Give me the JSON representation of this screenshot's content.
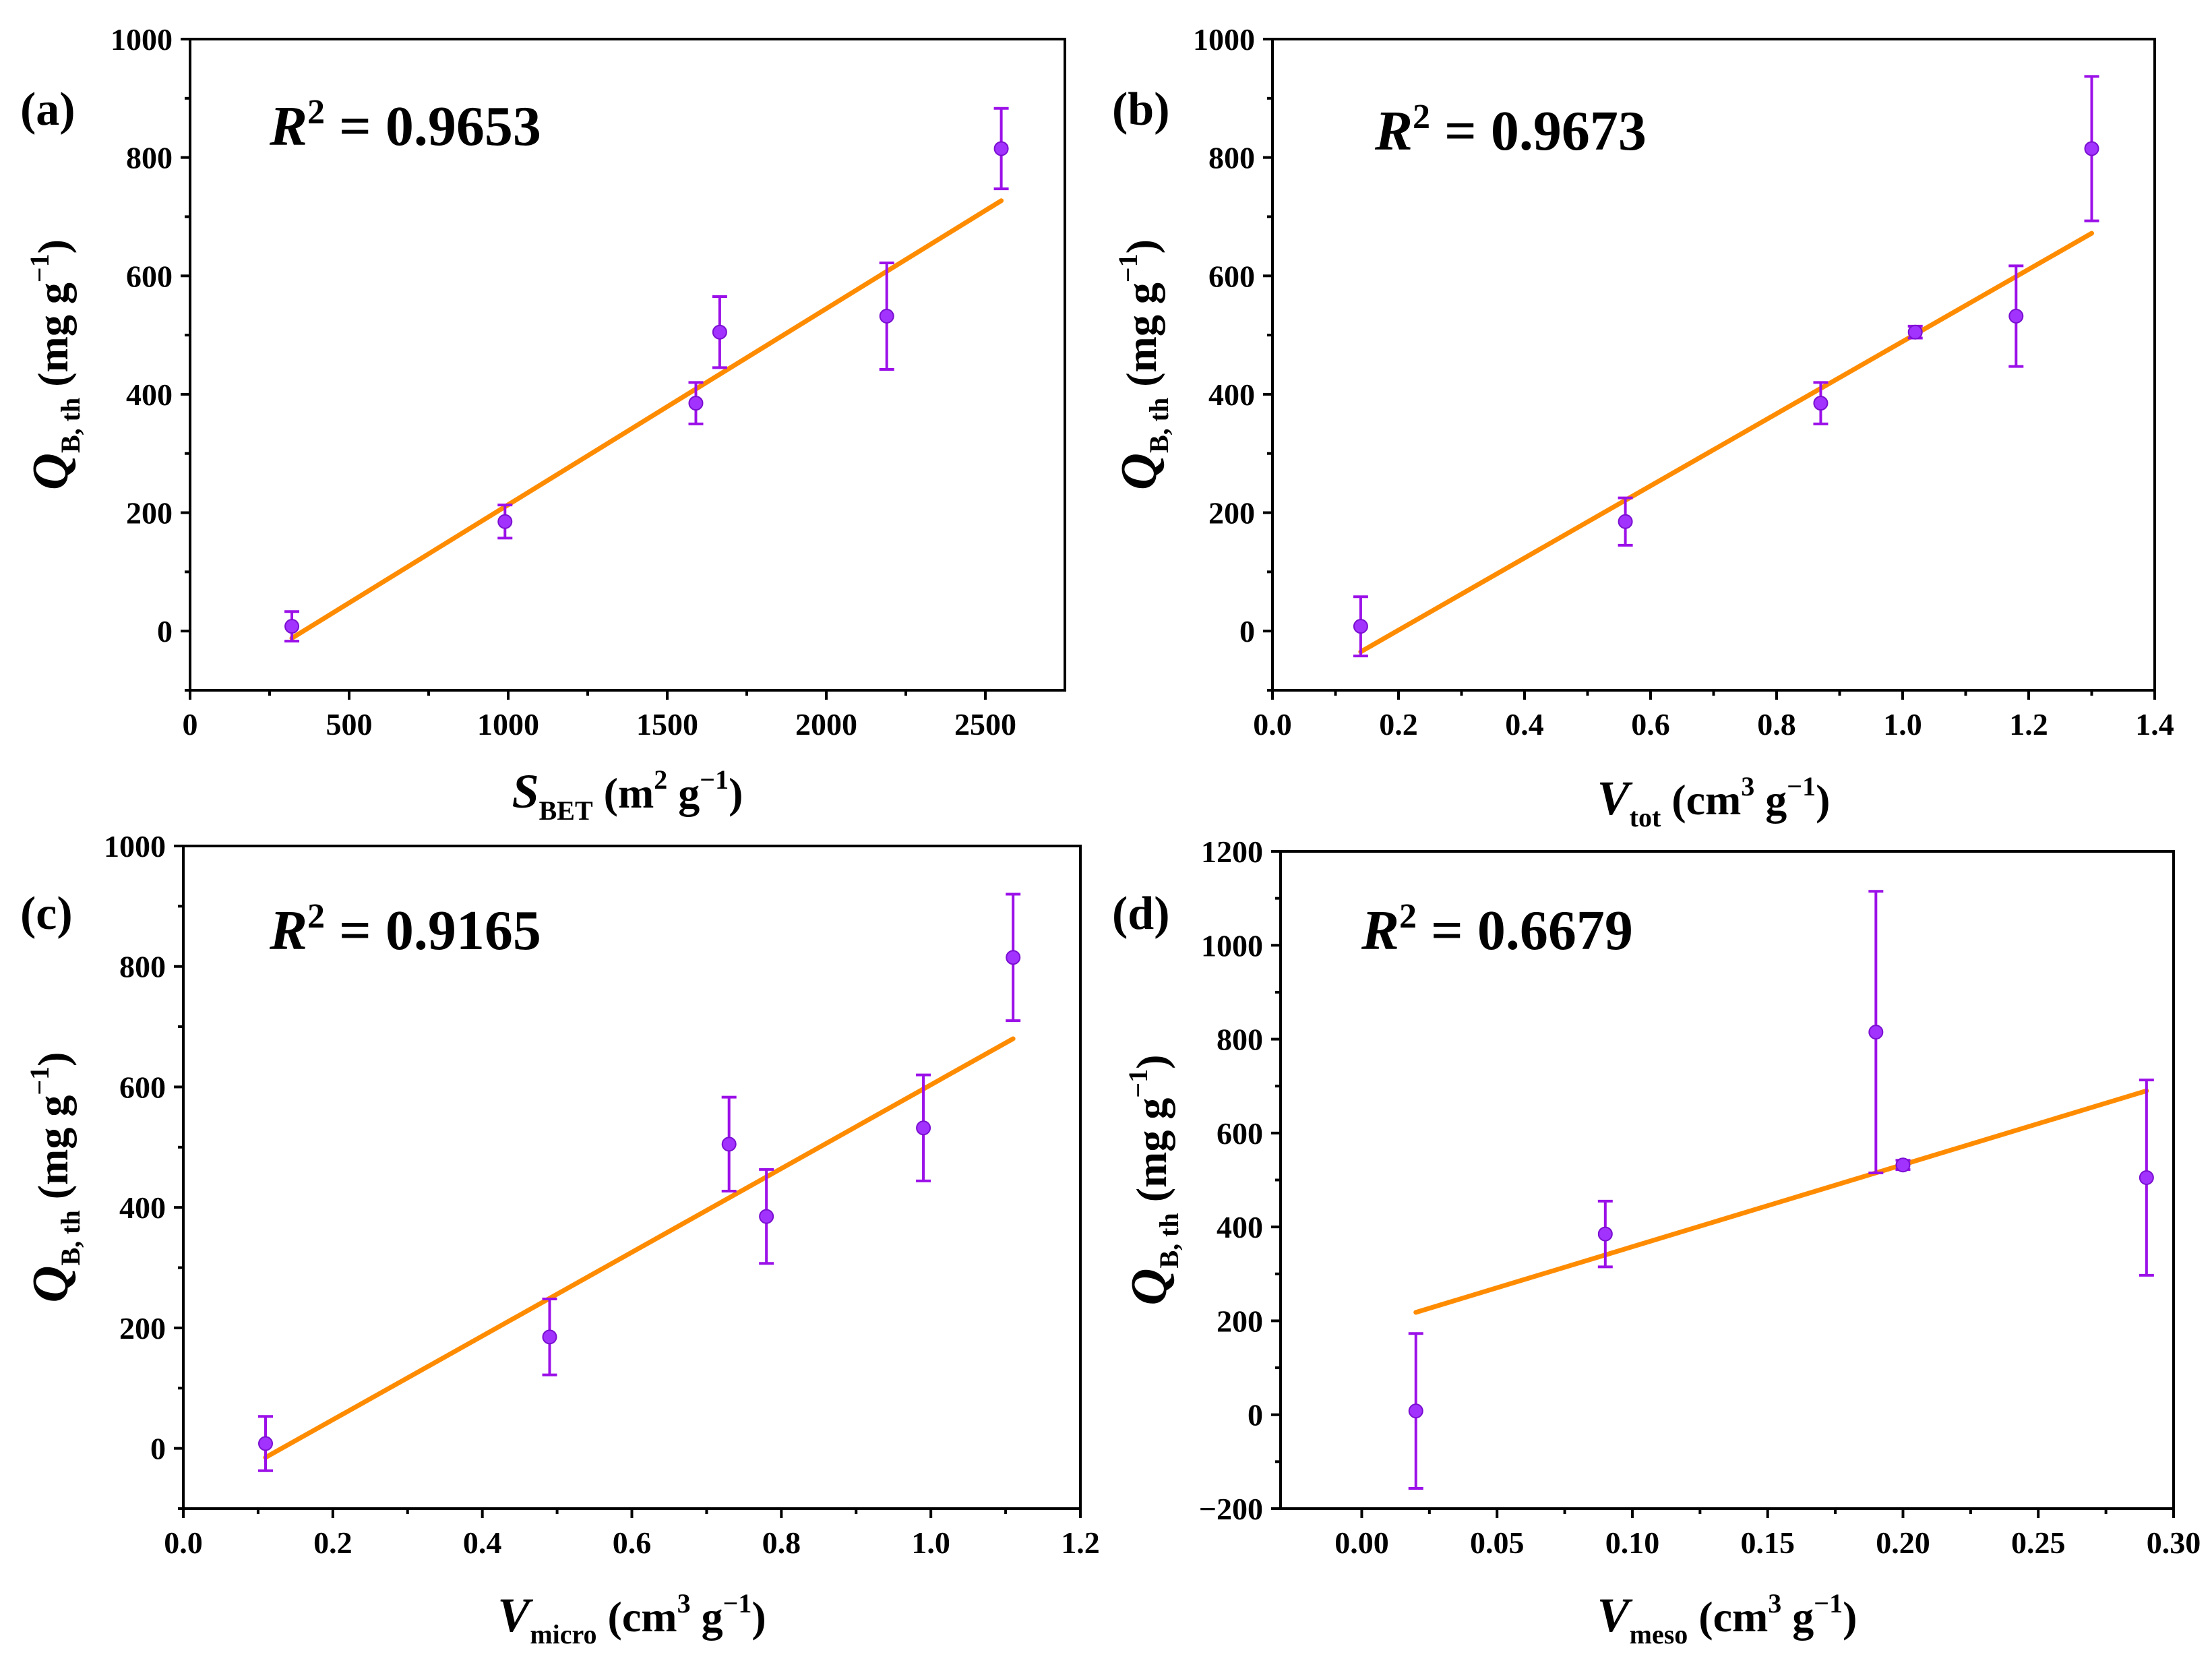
{
  "chart_data": [
    {
      "type": "scatter",
      "panel_label": "(a)",
      "r2_label": "R",
      "r2_sup": "2",
      "r2_value": " = 0.9653",
      "xlabel": {
        "var": "S",
        "sub": "BET",
        "unit_open": " (m",
        "unit_sup": "2",
        "unit_mid": " g",
        "unit_sup2": "−1",
        "unit_close": ")"
      },
      "ylabel": {
        "var": "Q",
        "sub": "B, th",
        "unit_open": " (mg g",
        "unit_sup": "−1",
        "unit_close": ")"
      },
      "xlim": [
        0,
        2750
      ],
      "ylim": [
        -100,
        1000
      ],
      "xticks": [
        0,
        500,
        1000,
        1500,
        2000,
        2500
      ],
      "xtick_labels": [
        "0",
        "500",
        "1000",
        "1500",
        "2000",
        "2500"
      ],
      "yticks": [
        0,
        200,
        400,
        600,
        800,
        1000
      ],
      "ytick_labels": [
        "0",
        "200",
        "400",
        "600",
        "800",
        "1000"
      ],
      "points": [
        {
          "x": 320,
          "y": 8,
          "err_low": 25,
          "err_high": 25
        },
        {
          "x": 990,
          "y": 185,
          "err_low": 28,
          "err_high": 28
        },
        {
          "x": 1590,
          "y": 385,
          "err_low": 35,
          "err_high": 35
        },
        {
          "x": 1665,
          "y": 505,
          "err_low": 60,
          "err_high": 60
        },
        {
          "x": 2190,
          "y": 532,
          "err_low": 90,
          "err_high": 90
        },
        {
          "x": 2550,
          "y": 815,
          "err_low": 68,
          "err_high": 68
        }
      ],
      "fit": {
        "x": [
          320,
          2550
        ],
        "y": [
          -12,
          727
        ]
      }
    },
    {
      "type": "scatter",
      "panel_label": "(b)",
      "r2_label": "R",
      "r2_sup": "2",
      "r2_value": " = 0.9673",
      "xlabel": {
        "var": "V",
        "sub": "tot",
        "unit_open": " (cm",
        "unit_sup": "3",
        "unit_mid": " g",
        "unit_sup2": "−1",
        "unit_close": ")"
      },
      "ylabel": {
        "var": "Q",
        "sub": "B, th",
        "unit_open": " (mg g",
        "unit_sup": "−1",
        "unit_close": ")"
      },
      "xlim": [
        0,
        1.4
      ],
      "ylim": [
        -100,
        1000
      ],
      "xticks": [
        0,
        0.2,
        0.4,
        0.6,
        0.8,
        1.0,
        1.2,
        1.4
      ],
      "xtick_labels": [
        "0.0",
        "0.2",
        "0.4",
        "0.6",
        "0.8",
        "1.0",
        "1.2",
        "1.4"
      ],
      "yticks": [
        0,
        200,
        400,
        600,
        800,
        1000
      ],
      "ytick_labels": [
        "0",
        "200",
        "400",
        "600",
        "800",
        "1000"
      ],
      "points": [
        {
          "x": 0.14,
          "y": 8,
          "err_low": 50,
          "err_high": 50
        },
        {
          "x": 0.56,
          "y": 185,
          "err_low": 40,
          "err_high": 40
        },
        {
          "x": 0.87,
          "y": 385,
          "err_low": 35,
          "err_high": 35
        },
        {
          "x": 1.02,
          "y": 505,
          "err_low": 10,
          "err_high": 10
        },
        {
          "x": 1.18,
          "y": 532,
          "err_low": 85,
          "err_high": 85
        },
        {
          "x": 1.3,
          "y": 815,
          "err_low": 122,
          "err_high": 122
        }
      ],
      "fit": {
        "x": [
          0.14,
          1.3
        ],
        "y": [
          -35,
          672
        ]
      }
    },
    {
      "type": "scatter",
      "panel_label": "(c)",
      "r2_label": "R",
      "r2_sup": "2",
      "r2_value": " = 0.9165",
      "xlabel": {
        "var": "V",
        "sub": "micro",
        "unit_open": " (cm",
        "unit_sup": "3",
        "unit_mid": " g",
        "unit_sup2": "−1",
        "unit_close": ")"
      },
      "ylabel": {
        "var": "Q",
        "sub": "B, th",
        "unit_open": " (mg g",
        "unit_sup": "−1",
        "unit_close": ")"
      },
      "xlim": [
        0,
        1.2
      ],
      "ylim": [
        -100,
        1000
      ],
      "xticks": [
        0,
        0.2,
        0.4,
        0.6,
        0.8,
        1.0,
        1.2
      ],
      "xtick_labels": [
        "0.0",
        "0.2",
        "0.4",
        "0.6",
        "0.8",
        "1.0",
        "1.2"
      ],
      "yticks": [
        0,
        200,
        400,
        600,
        800,
        1000
      ],
      "ytick_labels": [
        "0",
        "200",
        "400",
        "600",
        "800",
        "1000"
      ],
      "points": [
        {
          "x": 0.11,
          "y": 8,
          "err_low": 45,
          "err_high": 45
        },
        {
          "x": 0.49,
          "y": 185,
          "err_low": 63,
          "err_high": 63
        },
        {
          "x": 0.73,
          "y": 505,
          "err_low": 78,
          "err_high": 78
        },
        {
          "x": 0.78,
          "y": 385,
          "err_low": 78,
          "err_high": 78
        },
        {
          "x": 0.99,
          "y": 532,
          "err_low": 88,
          "err_high": 88
        },
        {
          "x": 1.11,
          "y": 815,
          "err_low": 105,
          "err_high": 105
        }
      ],
      "fit": {
        "x": [
          0.11,
          1.11
        ],
        "y": [
          -15,
          680
        ]
      }
    },
    {
      "type": "scatter",
      "panel_label": "(d)",
      "r2_label": "R",
      "r2_sup": "2",
      "r2_value": " = 0.6679",
      "xlabel": {
        "var": "V",
        "sub": "meso",
        "unit_open": " (cm",
        "unit_sup": "3",
        "unit_mid": " g",
        "unit_sup2": "−1",
        "unit_close": ")"
      },
      "ylabel": {
        "var": "Q",
        "sub": "B, th",
        "unit_open": " (mg g",
        "unit_sup": "−1",
        "unit_close": ")"
      },
      "xlim": [
        -0.03,
        0.3
      ],
      "ylim": [
        -200,
        1200
      ],
      "xticks": [
        0,
        0.05,
        0.1,
        0.15,
        0.2,
        0.25,
        0.3
      ],
      "xtick_labels": [
        "0.00",
        "0.05",
        "0.10",
        "0.15",
        "0.20",
        "0.25",
        "0.30"
      ],
      "yticks": [
        -200,
        0,
        200,
        400,
        600,
        800,
        1000,
        1200
      ],
      "ytick_labels": [
        "−200",
        "0",
        "200",
        "400",
        "600",
        "800",
        "1000",
        "1200"
      ],
      "points": [
        {
          "x": 0.02,
          "y": 8,
          "err_low": 165,
          "err_high": 165
        },
        {
          "x": 0.09,
          "y": 385,
          "err_low": 70,
          "err_high": 70
        },
        {
          "x": 0.19,
          "y": 815,
          "err_low": 300,
          "err_high": 300
        },
        {
          "x": 0.2,
          "y": 532,
          "err_low": 10,
          "err_high": 10
        },
        {
          "x": 0.29,
          "y": 505,
          "err_low": 208,
          "err_high": 208
        }
      ],
      "fit": {
        "x": [
          0.02,
          0.29
        ],
        "y": [
          218,
          690
        ]
      }
    }
  ]
}
